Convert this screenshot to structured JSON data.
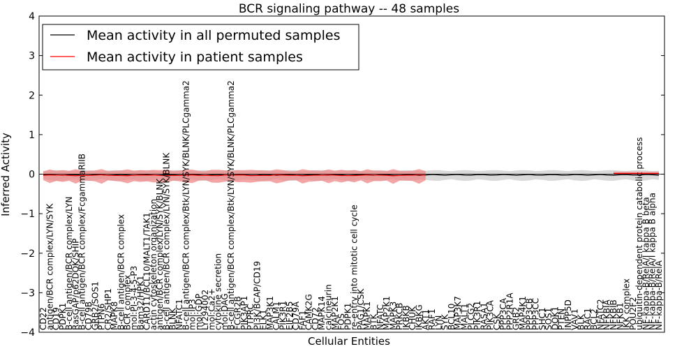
{
  "chart_data": {
    "type": "line",
    "title": "BCR signaling pathway -- 48 samples",
    "xlabel": "Cellular Entities",
    "ylabel": "Inferred Activity",
    "ylim": [
      -4,
      4
    ],
    "yticks": [
      "4",
      "3",
      "2",
      "1",
      "0",
      "−1",
      "−2",
      "−3",
      "−4"
    ],
    "legend": {
      "placement": "top-left",
      "entries": [
        {
          "label": "Mean activity in all permuted samples",
          "color": "#000000"
        },
        {
          "label": "Mean activity in patient samples",
          "color": "#ff0000"
        }
      ]
    },
    "colors": {
      "permuted_line": "#000000",
      "permuted_band": "#bfbfbf",
      "patient_line": "#ff0000",
      "patient_band": "#f08080"
    },
    "entities": [
      "CD22",
      "antigen/BCR complex/LYN/SYK",
      "CD19",
      "PDPK1",
      "B-cell antigen/BCR complex/LYN",
      "RasGAP/p62DOK/SHIP",
      "B-cell antigen/BCR complex/FcgammaRIIB",
      "CD79B",
      "GRB2/SOS1",
      "PTPN6",
      "CR2/SHP1",
      "MAPK8",
      "B-cell antigen/BCR complex",
      "BCR complex",
      "mol:PI-3-4-5-P3",
      "Bam32/HPK1",
      "CARD11/BCL10/MALT1/TAK1",
      "actin cytoskeleton organization",
      "antigen/BCR complex/LYN/SYK/BLNK",
      "B-cell antigen/BCR complex/LYN/SYK/BLNK",
      "BLNK",
      "NFATC1",
      "B-cell antigen/BCR complex/Btk/LYN/SYK/BLNK/PLCgamma2",
      "mol:IP3",
      "mol:GDP",
      "LY294002",
      "mol:Ca2+",
      "cytokine secretion",
      "mol:DAG",
      "B-cell antigen/BCR complex/Btk/LYN/SYK/BLNK/PLCgamma2",
      "FCGR2B",
      "PIK3AP1",
      "PTPRC",
      "PI3K/BCAP/CD19",
      "ELK1",
      "MAP3K1",
      "CALM1",
      "PIK3R1",
      "EIF2B5",
      "CD79A",
      "FAF1",
      "CAMK2G",
      "CD72",
      "MAPK14",
      "calcineurin",
      "MAP2K1",
      "FOS",
      "PDPK1",
      "re-entry into mitotic cell cycle",
      "PAG1/CSK",
      "MAPK1",
      "BTK",
      "NFATC",
      "MAP2K1",
      "MAPK3",
      "PRKCB",
      "IKBKB",
      "CHUK",
      "IKBKG",
      "AKT1",
      "RAF1",
      "LYN",
      "SYK",
      "BCL10",
      "MAP3K7",
      "MALT1",
      "PLCG2",
      "PIK3R1",
      "RASA1",
      "PIK3CA",
      "CSK",
      "PPP3CA",
      "PPP2R1A",
      "GRB2",
      "MAP4K1",
      "PPP3CB",
      "PPP3CC",
      "SHC1",
      "SOS1",
      "DOK1",
      "PTEN",
      "INPP5D",
      "VAV1",
      "BLK",
      "RAC1",
      "BCL2",
      "NFATC2",
      "NFKBIA",
      "NFKBIB",
      "NFKB1",
      "IKK complex",
      "POU2F2",
      "ubiquitin-dependent protein catabolic process",
      "NF-kappa-B/RelA/I kappa B beta",
      "NF-kappa-B/RelA/I kappa B alpha",
      "NF-kappa-B/RelA"
    ]
  }
}
